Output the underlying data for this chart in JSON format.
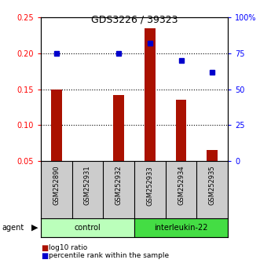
{
  "title": "GDS3226 / 39323",
  "samples": [
    "GSM252890",
    "GSM252931",
    "GSM252932",
    "GSM252933",
    "GSM252934",
    "GSM252935"
  ],
  "log10_ratio": [
    0.15,
    0.05,
    0.142,
    0.235,
    0.135,
    0.065
  ],
  "percentile_rank": [
    75,
    null,
    75,
    82,
    70,
    62
  ],
  "bar_color": "#aa1100",
  "dot_color": "#0000cc",
  "bar_bottom": 0.05,
  "ylim_left": [
    0.05,
    0.25
  ],
  "ylim_right": [
    0,
    100
  ],
  "yticks_left": [
    0.05,
    0.1,
    0.15,
    0.2,
    0.25
  ],
  "ytick_labels_left": [
    "0.05",
    "0.10",
    "0.15",
    "0.20",
    "0.25"
  ],
  "yticks_right": [
    0,
    25,
    50,
    75,
    100
  ],
  "ytick_labels_right": [
    "0",
    "25",
    "50",
    "75",
    "100%"
  ],
  "dotted_lines": [
    0.1,
    0.15,
    0.2
  ],
  "groups": [
    {
      "label": "control",
      "start": 0,
      "end": 3,
      "color": "#bbffbb"
    },
    {
      "label": "interleukin-22",
      "start": 3,
      "end": 6,
      "color": "#44dd44"
    }
  ],
  "agent_label": "agent",
  "legend_bar_label": "log10 ratio",
  "legend_dot_label": "percentile rank within the sample",
  "group_row_color": "#cccccc",
  "background_color": "#ffffff",
  "title_fontsize": 9,
  "tick_fontsize": 7,
  "sample_fontsize": 6,
  "group_fontsize": 7,
  "legend_fontsize": 6.5
}
